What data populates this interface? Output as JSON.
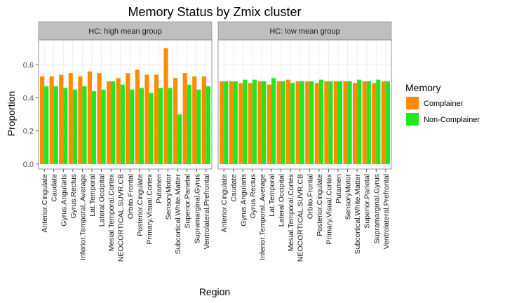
{
  "chart_data": {
    "type": "bar",
    "title": "Memory Status by Zmix cluster",
    "xlabel": "Region",
    "ylabel": "Proportion",
    "ylim": [
      -0.03,
      0.75
    ],
    "yticks": [
      0.0,
      0.2,
      0.4,
      0.6
    ],
    "ytick_labels": [
      "0.0",
      "0.2",
      "0.4",
      "0.6"
    ],
    "grid": true,
    "legend_position": "right",
    "legend_title": "Memory",
    "categories": [
      "Anterior.Cingulate",
      "Caudate",
      "Gyrus.Angularis",
      "Gyrus.Rectus",
      "Inferior.Temporal..Average",
      "Lat.Temporal",
      "Lateral.Occipital",
      "Mesial.Temporal.Cortex",
      "NEOCORTICAL.SUVR.CB",
      "Orbito.Frontal",
      "Posterior.Cingulate",
      "Primary.Visual.Cortex",
      "Putamen",
      "SensoryMotor",
      "Subcortical.White.Matter",
      "Superior.Parietal",
      "Supramarginal.Gyrus",
      "Ventrolateral.Prefrontal"
    ],
    "series_names": [
      "Complainer",
      "Non-Complainer"
    ],
    "colors": {
      "Complainer": "#ff8c00",
      "Non-Complainer": "#1ee81e"
    },
    "panels": [
      {
        "label": "HC: high mean group",
        "series": [
          {
            "name": "Complainer",
            "values": [
              0.53,
              0.53,
              0.54,
              0.55,
              0.53,
              0.56,
              0.55,
              0.5,
              0.52,
              0.55,
              0.57,
              0.54,
              0.54,
              0.7,
              0.52,
              0.55,
              0.53,
              0.53
            ]
          },
          {
            "name": "Non-Complainer",
            "values": [
              0.47,
              0.47,
              0.46,
              0.45,
              0.47,
              0.44,
              0.45,
              0.5,
              0.48,
              0.45,
              0.46,
              0.43,
              0.46,
              0.46,
              0.3,
              0.48,
              0.45,
              0.47
            ]
          }
        ]
      },
      {
        "label": "HC: low mean group",
        "series": [
          {
            "name": "Complainer",
            "values": [
              0.5,
              0.5,
              0.49,
              0.49,
              0.5,
              0.48,
              0.5,
              0.51,
              0.5,
              0.5,
              0.49,
              0.5,
              0.5,
              0.5,
              0.49,
              0.5,
              0.49,
              0.5
            ]
          },
          {
            "name": "Non-Complainer",
            "values": [
              0.5,
              0.5,
              0.51,
              0.51,
              0.5,
              0.52,
              0.5,
              0.49,
              0.5,
              0.5,
              0.51,
              0.5,
              0.5,
              0.5,
              0.51,
              0.5,
              0.51,
              0.5
            ]
          }
        ]
      }
    ]
  }
}
